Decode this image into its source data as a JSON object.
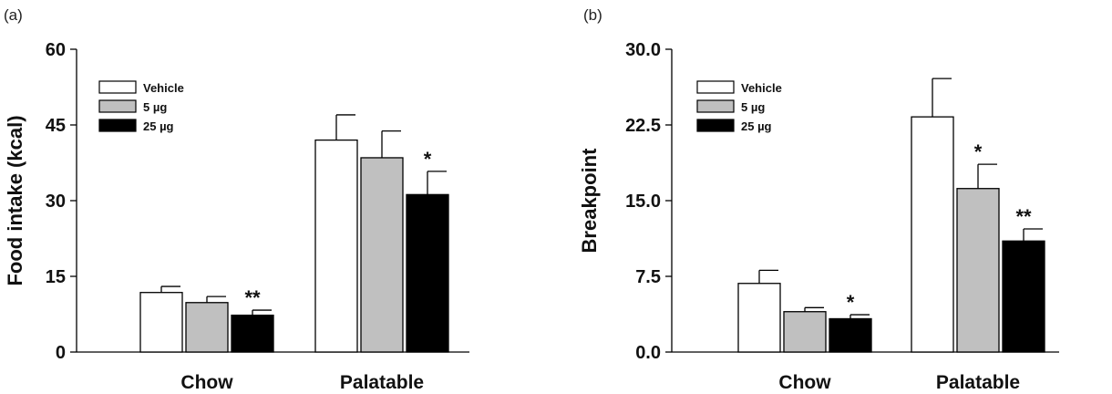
{
  "chart_data": [
    {
      "type": "bar",
      "panel_label": "(a)",
      "ylabel": "Food intake (kcal)",
      "xlabel": "",
      "categories": [
        "Chow",
        "Palatable"
      ],
      "ylim": [
        0,
        60
      ],
      "yticks": [
        "0",
        "15",
        "30",
        "45",
        "60"
      ],
      "legend_position": "top-left",
      "series": [
        {
          "name": "Vehicle",
          "color": "#ffffff",
          "values": [
            11.8,
            42.0
          ],
          "errors": [
            1.2,
            5.0
          ],
          "annotations": [
            "",
            ""
          ]
        },
        {
          "name": "5 µg",
          "color": "#c0c0c0",
          "values": [
            9.8,
            38.5
          ],
          "errors": [
            1.2,
            5.3
          ],
          "annotations": [
            "",
            ""
          ]
        },
        {
          "name": "25 µg",
          "color": "#000000",
          "values": [
            7.3,
            31.2
          ],
          "errors": [
            1.0,
            4.6
          ],
          "annotations": [
            "**",
            "*"
          ]
        }
      ]
    },
    {
      "type": "bar",
      "panel_label": "(b)",
      "ylabel": "Breakpoint",
      "xlabel": "",
      "categories": [
        "Chow",
        "Palatable"
      ],
      "ylim": [
        0,
        30
      ],
      "yticks": [
        "0.0",
        "7.5",
        "15.0",
        "22.5",
        "30.0"
      ],
      "legend_position": "top-left",
      "series": [
        {
          "name": "Vehicle",
          "color": "#ffffff",
          "values": [
            6.8,
            23.3
          ],
          "errors": [
            1.3,
            3.8
          ],
          "annotations": [
            "",
            ""
          ]
        },
        {
          "name": "5 µg",
          "color": "#c0c0c0",
          "values": [
            4.0,
            16.2
          ],
          "errors": [
            0.4,
            2.4
          ],
          "annotations": [
            "",
            "*"
          ]
        },
        {
          "name": "25 µg",
          "color": "#000000",
          "values": [
            3.3,
            11.0
          ],
          "errors": [
            0.4,
            1.2
          ],
          "annotations": [
            "*",
            "**"
          ]
        }
      ]
    }
  ]
}
